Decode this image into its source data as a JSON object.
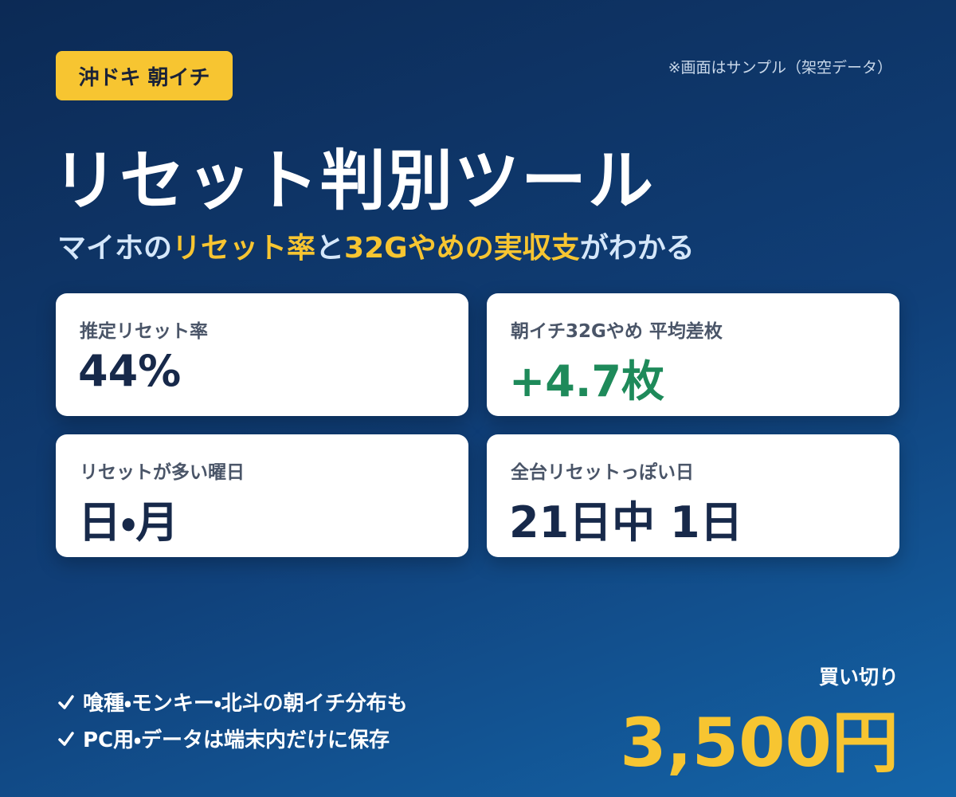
{
  "header": {
    "badge": "沖ドキ 朝イチ",
    "note": "※画面はサンプル（架空データ）",
    "title": "リセット判別ツール",
    "subtitle": {
      "parts": [
        "マイホの",
        "リセット率",
        "と",
        "32Gやめの実収支",
        "がわかる"
      ]
    }
  },
  "cards": [
    {
      "label": "推定リセット率",
      "value": "44%"
    },
    {
      "label": "朝イチ32Gやめ 平均差枚",
      "value": "+4.7枚"
    },
    {
      "label": "リセットが多い曜日",
      "value": "日・月"
    },
    {
      "label": "全台リセットっぽい日",
      "value": "21日中 1日"
    }
  ],
  "features": [
    "喰種・モンキー・北斗の朝イチ分布も",
    "PC用・データは端末内だけに保存"
  ],
  "price": {
    "label": "買い切り",
    "value": "3,500円"
  }
}
